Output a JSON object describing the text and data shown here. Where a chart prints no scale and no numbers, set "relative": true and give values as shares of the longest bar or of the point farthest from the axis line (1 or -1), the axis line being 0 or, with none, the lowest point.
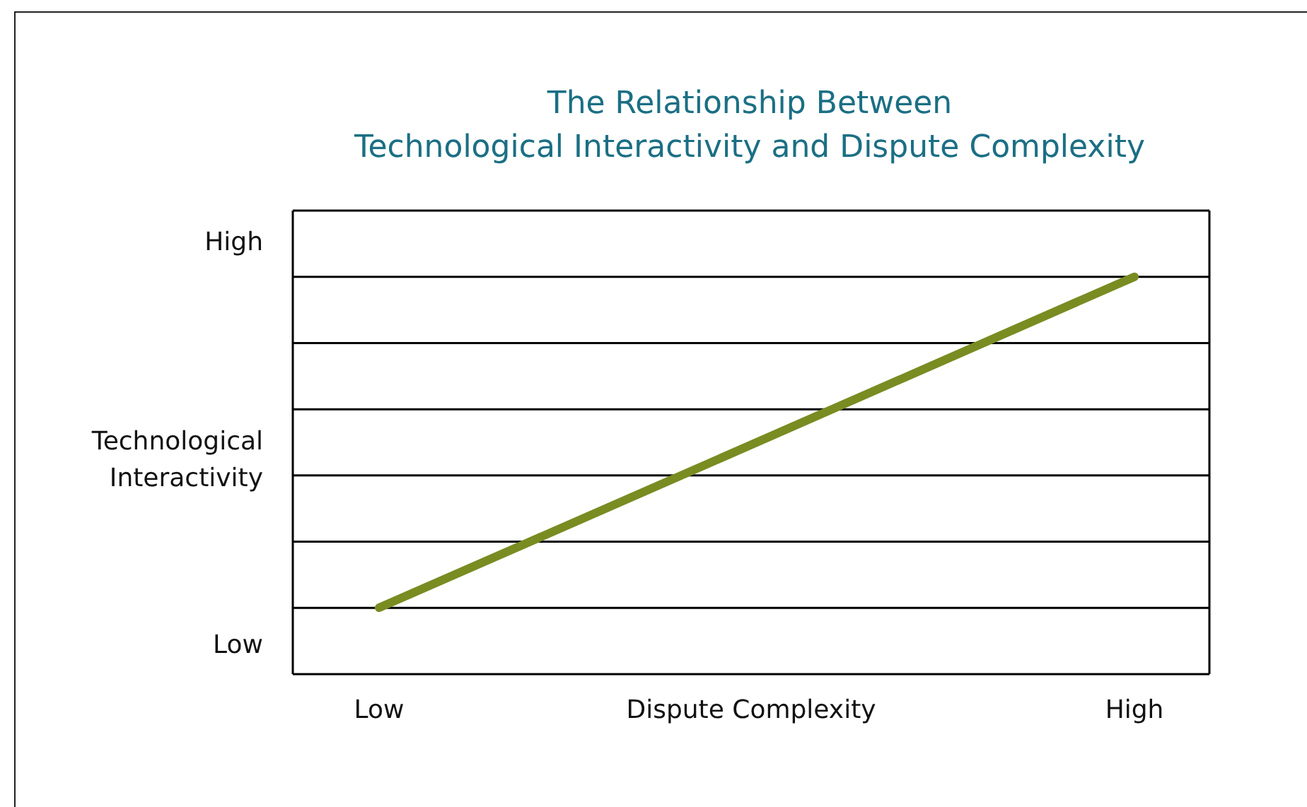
{
  "chart_data": {
    "type": "line",
    "title": "The Relationship Between\nTechnological Interactivity and Dispute Complexity",
    "xlabel": "Dispute Complexity",
    "ylabel": "Technological Interactivity",
    "annotations": [
      "High",
      "Low"
    ],
    "categories": [
      "Low",
      "High"
    ],
    "relative": true,
    "grid": true,
    "series": [
      {
        "color": "#788c22",
        "values": [
          0.167,
          1
        ]
      }
    ]
  }
}
